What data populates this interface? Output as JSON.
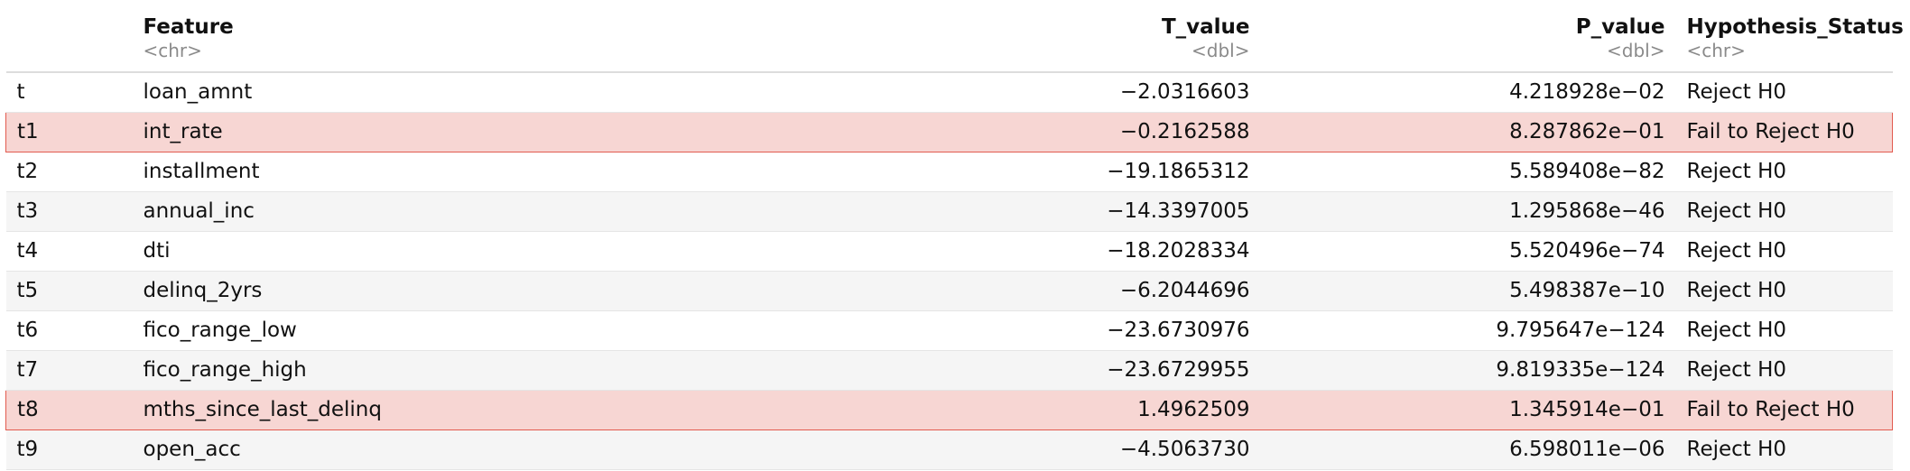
{
  "table": {
    "columns": [
      {
        "name": "",
        "type": ""
      },
      {
        "name": "Feature",
        "type": "<chr>"
      },
      {
        "name": "T_value",
        "type": "<dbl>"
      },
      {
        "name": "P_value",
        "type": "<dbl>"
      },
      {
        "name": "Hypothesis_Status",
        "type": "<chr>"
      }
    ],
    "rows": [
      {
        "name": "t",
        "feature": "loan_amnt",
        "t_value": "−2.0316603",
        "p_value": "4.218928e−02",
        "status": "Reject H0",
        "highlighted": false
      },
      {
        "name": "t1",
        "feature": "int_rate",
        "t_value": "−0.2162588",
        "p_value": "8.287862e−01",
        "status": "Fail to Reject H0",
        "highlighted": true
      },
      {
        "name": "t2",
        "feature": "installment",
        "t_value": "−19.1865312",
        "p_value": "5.589408e−82",
        "status": "Reject H0",
        "highlighted": false
      },
      {
        "name": "t3",
        "feature": "annual_inc",
        "t_value": "−14.3397005",
        "p_value": "1.295868e−46",
        "status": "Reject H0",
        "highlighted": false
      },
      {
        "name": "t4",
        "feature": "dti",
        "t_value": "−18.2028334",
        "p_value": "5.520496e−74",
        "status": "Reject H0",
        "highlighted": false
      },
      {
        "name": "t5",
        "feature": "delinq_2yrs",
        "t_value": "−6.2044696",
        "p_value": "5.498387e−10",
        "status": "Reject H0",
        "highlighted": false
      },
      {
        "name": "t6",
        "feature": "fico_range_low",
        "t_value": "−23.6730976",
        "p_value": "9.795647e−124",
        "status": "Reject H0",
        "highlighted": false
      },
      {
        "name": "t7",
        "feature": "fico_range_high",
        "t_value": "−23.6729955",
        "p_value": "9.819335e−124",
        "status": "Reject H0",
        "highlighted": false
      },
      {
        "name": "t8",
        "feature": "mths_since_last_delinq",
        "t_value": "1.4962509",
        "p_value": "1.345914e−01",
        "status": "Fail to Reject H0",
        "highlighted": true
      },
      {
        "name": "t9",
        "feature": "open_acc",
        "t_value": "−4.5063730",
        "p_value": "6.598011e−06",
        "status": "Reject H0",
        "highlighted": false
      }
    ]
  },
  "colors": {
    "highlight_fill": "#f7d6d3",
    "highlight_border": "#e25b4f",
    "type_tag": "#8a8a8a"
  }
}
